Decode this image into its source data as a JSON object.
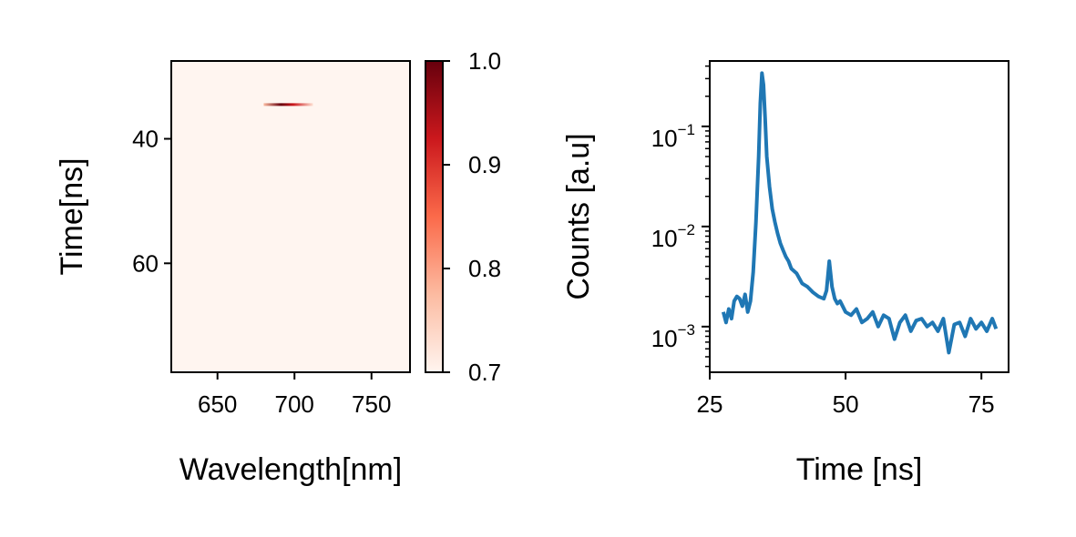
{
  "chart_data": [
    {
      "type": "heatmap",
      "xlabel": "Wavelength[nm]",
      "ylabel": "Time[ns]",
      "xlim": [
        620,
        775
      ],
      "ylim": [
        27.5,
        77.5
      ],
      "xticks": [
        "650",
        "700",
        "750"
      ],
      "xtick_values": [
        650,
        700,
        750
      ],
      "yticks": [
        "40",
        "60"
      ],
      "ytick_values": [
        40,
        60
      ],
      "y_inverted": true,
      "colormap": "Reds",
      "colormap_stops": [
        "#fff5f0",
        "#fcbba1",
        "#fb6a4a",
        "#cb181d",
        "#67000d"
      ],
      "background_color": "#fff5f0",
      "highlight": {
        "x_start": 680,
        "x_end": 712,
        "y": 34.5,
        "peak_x": 690,
        "peak_value": 1.0
      },
      "colorbar": {
        "min": 0.7,
        "max": 1.0,
        "ticks": [
          "0.7",
          "0.8",
          "0.9",
          "1.0"
        ],
        "tick_values": [
          0.7,
          0.8,
          0.9,
          1.0
        ]
      }
    },
    {
      "type": "line",
      "xlabel": "Time [ns]",
      "ylabel": "Counts [a.u]",
      "xlim": [
        25,
        80
      ],
      "ylim": [
        0.00035,
        0.45
      ],
      "yscale": "log",
      "xticks": [
        "25",
        "50",
        "75"
      ],
      "xtick_values": [
        25,
        50,
        75
      ],
      "ytick_values": [
        0.001,
        0.01,
        0.1
      ],
      "yticks": [
        {
          "base": "10",
          "exp": "−3"
        },
        {
          "base": "10",
          "exp": "−2"
        },
        {
          "base": "10",
          "exp": "−1"
        }
      ],
      "line_color": "#1f77b4",
      "series": [
        {
          "x": [
            27.5,
            28,
            28.5,
            29,
            29.5,
            30,
            30.5,
            31,
            31.5,
            32,
            32.5,
            33,
            33.5,
            34,
            34.3,
            34.6,
            34.9,
            35.2,
            35.5,
            36,
            36.5,
            37,
            37.5,
            38,
            38.5,
            39,
            39.5,
            40,
            41,
            42,
            43,
            44,
            45,
            46,
            46.5,
            47,
            47.5,
            48,
            48.5,
            49,
            50,
            51,
            52,
            53,
            54,
            55,
            56,
            57,
            58,
            59,
            60,
            61,
            62,
            63,
            64,
            65,
            66,
            67,
            68,
            69,
            70,
            71,
            72,
            73,
            74,
            75,
            76,
            77,
            77.7
          ],
          "y": [
            0.0014,
            0.0011,
            0.0015,
            0.0012,
            0.0018,
            0.002,
            0.0019,
            0.0016,
            0.0021,
            0.0014,
            0.0018,
            0.0035,
            0.011,
            0.05,
            0.17,
            0.34,
            0.26,
            0.12,
            0.05,
            0.025,
            0.015,
            0.011,
            0.0085,
            0.0068,
            0.0058,
            0.005,
            0.0045,
            0.0038,
            0.0034,
            0.0027,
            0.0025,
            0.0022,
            0.002,
            0.0019,
            0.0023,
            0.0045,
            0.0025,
            0.0019,
            0.0017,
            0.0018,
            0.0014,
            0.0013,
            0.0015,
            0.0011,
            0.0012,
            0.0014,
            0.001,
            0.0013,
            0.0012,
            0.00075,
            0.0011,
            0.0013,
            0.0009,
            0.00115,
            0.0012,
            0.001,
            0.0011,
            0.0009,
            0.0012,
            0.00055,
            0.00105,
            0.0011,
            0.0008,
            0.0012,
            0.00095,
            0.0011,
            0.0009,
            0.0012,
            0.00095
          ]
        }
      ]
    }
  ]
}
